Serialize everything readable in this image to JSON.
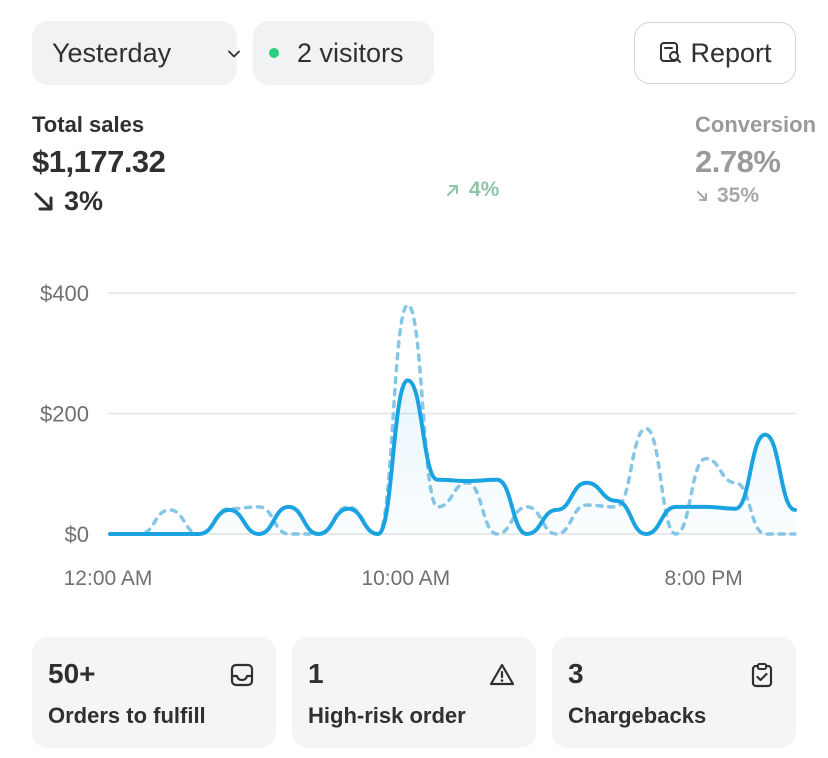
{
  "header": {
    "period_label": "Yesterday",
    "visitors_label": "2 visitors",
    "report_label": "Report",
    "colors": {
      "visitor_dot": "#29d17e"
    }
  },
  "metrics": [
    {
      "label": "Total sales",
      "value": "$1,177.32",
      "change": "3%",
      "direction": "down"
    },
    {
      "label": "",
      "value": "",
      "change": "4%",
      "direction": "up"
    },
    {
      "label": "Conversion",
      "value": "2.78%",
      "change": "35%",
      "direction": "down"
    }
  ],
  "chart_data": {
    "type": "line",
    "y_ticks": [
      "$400",
      "$200",
      "$0"
    ],
    "x_ticks": [
      "12:00 AM",
      "10:00 AM",
      "8:00 PM"
    ],
    "ylim": [
      0,
      400
    ],
    "x": [
      0,
      1,
      2,
      3,
      4,
      5,
      6,
      7,
      8,
      9,
      10,
      11,
      12,
      13,
      14,
      15,
      16,
      17,
      18,
      19,
      20,
      21,
      22,
      23
    ],
    "series": [
      {
        "style": "solid",
        "color": "#1aa3e0",
        "values": [
          0,
          0,
          0,
          0,
          40,
          0,
          45,
          0,
          42,
          0,
          255,
          90,
          88,
          90,
          0,
          40,
          85,
          55,
          0,
          45,
          45,
          42,
          165,
          40
        ]
      },
      {
        "style": "dashed",
        "color": "#86c6e6",
        "values": [
          0,
          0,
          40,
          0,
          42,
          45,
          0,
          0,
          45,
          0,
          380,
          45,
          85,
          0,
          45,
          0,
          48,
          45,
          175,
          0,
          125,
          85,
          0,
          0
        ]
      }
    ]
  },
  "tiles": [
    {
      "count": "50+",
      "label": "Orders to fulfill",
      "icon": "inbox-icon"
    },
    {
      "count": "1",
      "label": "High-risk order",
      "icon": "warning-icon"
    },
    {
      "count": "3",
      "label": "Chargebacks",
      "icon": "clipboard-check-icon"
    }
  ]
}
